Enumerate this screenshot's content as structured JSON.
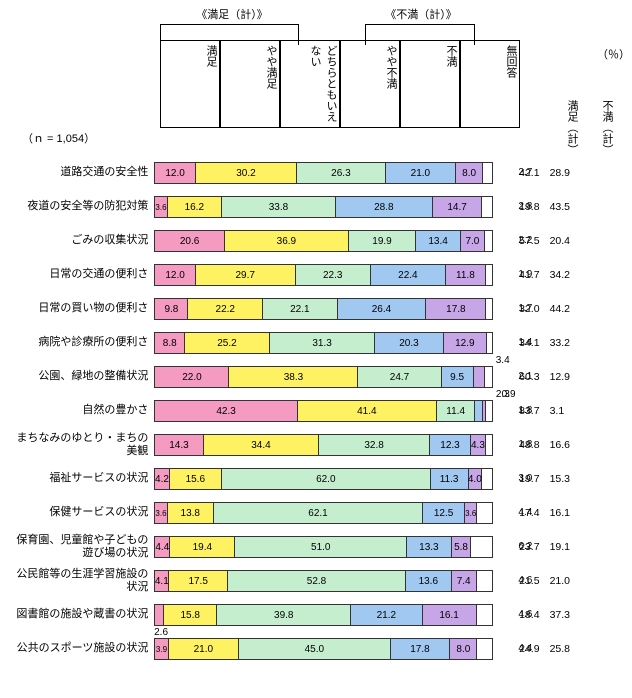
{
  "meta": {
    "n_label": "（ｎ = 1,054）",
    "pct_unit": "（％）",
    "bracket_satisfied": "《満足（計）》",
    "bracket_dissatisfied": "《不満（計）》",
    "side_sat": "満足（計）",
    "side_dis": "不満（計）"
  },
  "colors": {
    "c1": "#f59ac0",
    "c2": "#fef263",
    "c3": "#c5eecf",
    "c4": "#a0c8f0",
    "c5": "#c7a6e8",
    "c6": "#ffffff",
    "border": "#333333"
  },
  "legend": [
    {
      "label": "満足"
    },
    {
      "label": "やや満足"
    },
    {
      "label": "どちらともいえない"
    },
    {
      "label": "やや不満"
    },
    {
      "label": "不満"
    },
    {
      "label": "無回答"
    }
  ],
  "rows": [
    {
      "label": "道路交通の安全性",
      "seg": [
        12.0,
        30.2,
        26.3,
        21.0,
        8.0,
        2.7
      ],
      "sat": 42.1,
      "dis": 28.9,
      "callouts": {}
    },
    {
      "label": "夜道の安全等の防犯対策",
      "seg": [
        3.6,
        16.2,
        33.8,
        28.8,
        14.7,
        2.8
      ],
      "sat": 19.8,
      "dis": 43.5,
      "callouts": {}
    },
    {
      "label": "ごみの収集状況",
      "seg": [
        20.6,
        36.9,
        19.9,
        13.4,
        7.0,
        2.2
      ],
      "sat": 57.5,
      "dis": 20.4,
      "callouts": {}
    },
    {
      "label": "日常の交通の便利さ",
      "seg": [
        12.0,
        29.7,
        22.3,
        22.4,
        11.8,
        1.9
      ],
      "sat": 41.7,
      "dis": 34.2,
      "callouts": {}
    },
    {
      "label": "日常の買い物の便利さ",
      "seg": [
        9.8,
        22.2,
        22.1,
        26.4,
        17.8,
        1.7
      ],
      "sat": 32.0,
      "dis": 44.2,
      "callouts": {}
    },
    {
      "label": "病院や診療所の便利さ",
      "seg": [
        8.8,
        25.2,
        31.3,
        20.3,
        12.9,
        1.4
      ],
      "sat": 34.1,
      "dis": 33.2,
      "callouts": {}
    },
    {
      "label": "公園、緑地の整備状況",
      "seg": [
        22.0,
        38.3,
        24.7,
        9.5,
        3.4,
        2.1
      ],
      "sat": 60.3,
      "dis": 12.9,
      "callouts": {
        "4": "above"
      }
    },
    {
      "label": "自然の豊かさ",
      "seg": [
        42.3,
        41.4,
        11.4,
        2.3,
        0.9,
        1.8
      ],
      "sat": 83.7,
      "dis": 3.1,
      "callouts": {
        "3": "above",
        "4": "above"
      }
    },
    {
      "label": "まちなみのゆとり・まちの美観",
      "seg": [
        14.3,
        34.4,
        32.8,
        12.3,
        4.3,
        1.8
      ],
      "sat": 48.8,
      "dis": 16.6,
      "callouts": {}
    },
    {
      "label": "福祉サービスの状況",
      "seg": [
        4.2,
        15.6,
        62.0,
        11.3,
        4.0,
        3.0
      ],
      "sat": 19.7,
      "dis": 15.3,
      "callouts": {}
    },
    {
      "label": "保健サービスの状況",
      "seg": [
        3.6,
        13.8,
        62.1,
        12.5,
        3.6,
        4.4
      ],
      "sat": 17.4,
      "dis": 16.1,
      "callouts": {}
    },
    {
      "label": "保育園、児童館や子どもの遊び場の状況",
      "seg": [
        4.4,
        19.4,
        51.0,
        13.3,
        5.8,
        6.2
      ],
      "sat": 23.7,
      "dis": 19.1,
      "callouts": {}
    },
    {
      "label": "公民館等の生涯学習施設の状況",
      "seg": [
        4.1,
        17.5,
        52.8,
        13.6,
        7.4,
        4.6
      ],
      "sat": 21.5,
      "dis": 21.0,
      "callouts": {}
    },
    {
      "label": "図書館の施設や蔵書の状況",
      "seg": [
        2.6,
        15.8,
        39.8,
        21.2,
        16.1,
        4.6
      ],
      "sat": 18.4,
      "dis": 37.3,
      "callouts": {
        "0": "below"
      }
    },
    {
      "label": "公共のスポーツ施設の状況",
      "seg": [
        3.9,
        21.0,
        45.0,
        17.8,
        8.0,
        4.4
      ],
      "sat": 24.9,
      "dis": 25.8,
      "callouts": {}
    }
  ]
}
